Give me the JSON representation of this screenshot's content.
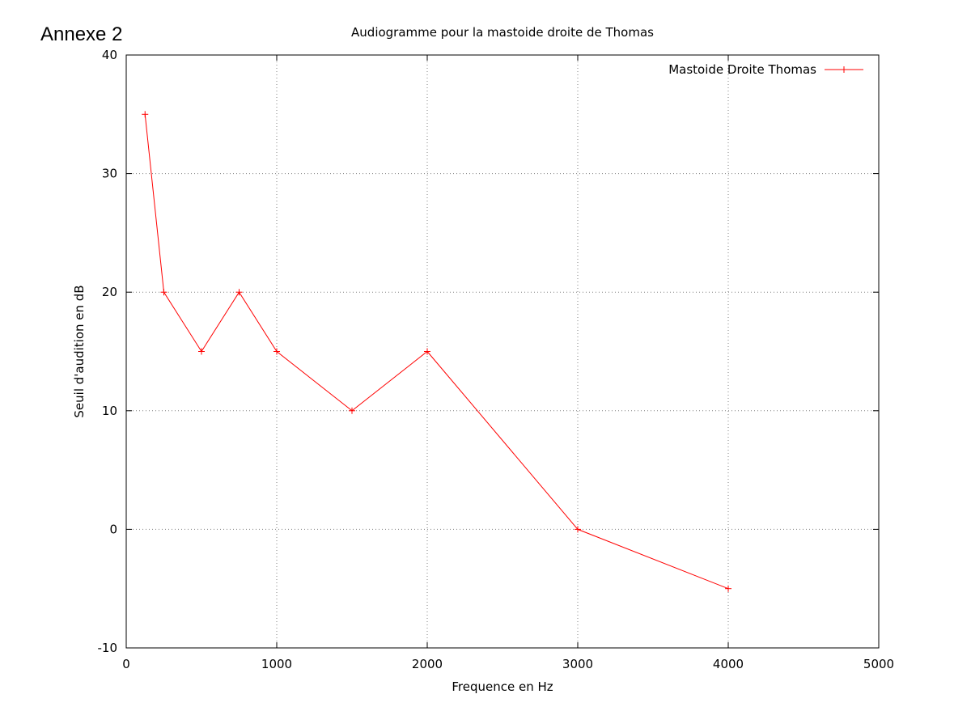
{
  "annex_label": "Annexe 2",
  "chart_data": {
    "type": "line",
    "title": "Audiogramme pour la mastoide droite de Thomas",
    "xlabel": "Frequence en Hz",
    "ylabel": "Seuil d'audition en dB",
    "xlim": [
      0,
      5000
    ],
    "ylim": [
      -10,
      40
    ],
    "x_ticks": [
      0,
      1000,
      2000,
      3000,
      4000,
      5000
    ],
    "y_ticks": [
      -10,
      0,
      10,
      20,
      30,
      40
    ],
    "x_tick_labels": [
      "0",
      "1000",
      "2000",
      "3000",
      "4000",
      "5000"
    ],
    "y_tick_labels": [
      "-10",
      "0",
      "10",
      "20",
      "30",
      "40"
    ],
    "grid": true,
    "legend_position": "top-right",
    "series": [
      {
        "name": "Mastoide Droite Thomas",
        "color": "#ff0000",
        "marker": "plus",
        "x": [
          125,
          250,
          500,
          750,
          1000,
          1500,
          2000,
          3000,
          4000
        ],
        "y": [
          35,
          20,
          15,
          20,
          15,
          10,
          15,
          0,
          -5
        ]
      }
    ]
  }
}
